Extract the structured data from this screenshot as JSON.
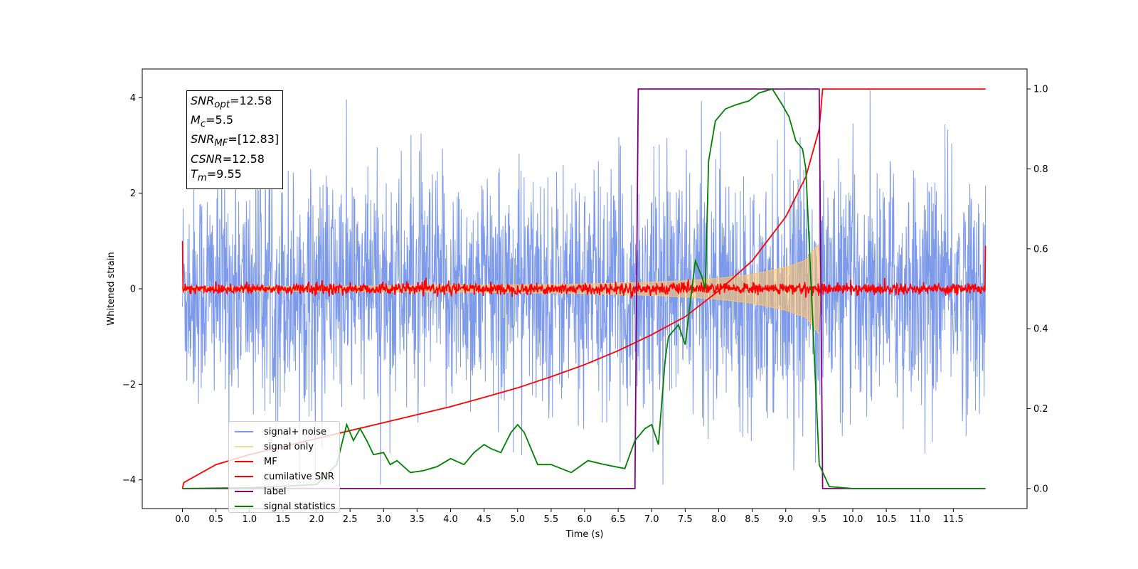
{
  "chart_data": {
    "type": "line",
    "title": "",
    "xlabel": "Time (s)",
    "ylabel": "Whitened strain",
    "ylabel_right": "",
    "xlim": [
      -0.6,
      12.6
    ],
    "ylim_left": [
      -4.6,
      4.6
    ],
    "ylim_right": [
      -0.05,
      1.05
    ],
    "x_ticks": [
      "0.0",
      "0.5",
      "1.0",
      "1.5",
      "2.0",
      "2.5",
      "3.0",
      "3.5",
      "4.0",
      "4.5",
      "5.0",
      "5.5",
      "6.0",
      "6.5",
      "7.0",
      "7.5",
      "8.0",
      "8.5",
      "9.0",
      "9.5",
      "10.0",
      "10.5",
      "11.0",
      "11.5"
    ],
    "y_ticks_left": [
      "4",
      "2",
      "0",
      "−2",
      "−4"
    ],
    "y_ticks_right": [
      "1.0",
      "0.8",
      "0.6",
      "0.4",
      "0.2",
      "0.0"
    ],
    "grid": false,
    "legend_position": "lower-left",
    "colors": {
      "signal_noise": "#6f8ee8",
      "signal_only": "#ffc46b",
      "mf": "#ff0000",
      "cumulative_snr": "#ff0000",
      "label": "#800080",
      "signal_statistics": "#008000"
    },
    "series": [
      {
        "name": "signal+ noise",
        "axis": "left",
        "style": "dense noise band",
        "description_values": {
          "x_start": 0.0,
          "x_end": 11.98,
          "typical_amplitude": 2.2,
          "max_excursion": 4.15,
          "min_excursion": -4.1
        }
      },
      {
        "name": "signal only",
        "axis": "left",
        "style": "chirp envelope",
        "envelope": {
          "x": [
            0.0,
            3.0,
            5.0,
            6.0,
            7.0,
            7.5,
            8.0,
            8.5,
            9.0,
            9.3,
            9.5,
            9.52
          ],
          "amp": [
            0.04,
            0.06,
            0.08,
            0.1,
            0.14,
            0.17,
            0.22,
            0.3,
            0.45,
            0.6,
            0.95,
            0.0
          ]
        }
      },
      {
        "name": "MF",
        "axis": "left",
        "style": "narrow noise band",
        "description_values": {
          "x_start": 0.0,
          "x_end": 11.98,
          "band": 0.12,
          "edge_start": 1.0,
          "edge_end": 0.9
        }
      },
      {
        "name": "cumilative SNR",
        "axis": "right",
        "x": [
          0.0,
          0.02,
          0.5,
          1.0,
          1.5,
          2.0,
          2.5,
          3.0,
          3.5,
          4.0,
          4.5,
          5.0,
          5.5,
          6.0,
          6.5,
          7.0,
          7.5,
          8.0,
          8.5,
          9.0,
          9.3,
          9.5,
          9.55,
          11.98
        ],
        "values": [
          0.0,
          0.015,
          0.06,
          0.085,
          0.105,
          0.125,
          0.145,
          0.165,
          0.185,
          0.205,
          0.228,
          0.252,
          0.28,
          0.31,
          0.345,
          0.385,
          0.43,
          0.495,
          0.57,
          0.68,
          0.78,
          0.9,
          1.0,
          1.0
        ]
      },
      {
        "name": "label",
        "axis": "right",
        "x": [
          0.0,
          6.75,
          6.8,
          9.5,
          9.55,
          11.98
        ],
        "values": [
          0.0,
          0.0,
          1.0,
          1.0,
          0.0,
          0.0
        ]
      },
      {
        "name": "signal statistics",
        "axis": "right",
        "x": [
          0.0,
          1.0,
          2.0,
          2.3,
          2.45,
          2.55,
          2.65,
          2.75,
          2.85,
          3.0,
          3.1,
          3.2,
          3.4,
          3.6,
          3.8,
          4.0,
          4.2,
          4.35,
          4.5,
          4.6,
          4.75,
          4.9,
          5.0,
          5.1,
          5.3,
          5.5,
          5.8,
          6.05,
          6.3,
          6.6,
          6.75,
          6.9,
          7.0,
          7.1,
          7.2,
          7.25,
          7.4,
          7.5,
          7.55,
          7.65,
          7.75,
          7.8,
          7.85,
          7.95,
          8.1,
          8.25,
          8.45,
          8.6,
          8.8,
          8.95,
          9.05,
          9.15,
          9.25,
          9.3,
          9.5,
          9.65,
          10.0,
          11.0,
          11.98
        ],
        "values": [
          0.0,
          0.002,
          0.01,
          0.06,
          0.16,
          0.12,
          0.15,
          0.12,
          0.085,
          0.09,
          0.06,
          0.07,
          0.04,
          0.045,
          0.055,
          0.075,
          0.06,
          0.09,
          0.11,
          0.1,
          0.09,
          0.14,
          0.16,
          0.14,
          0.06,
          0.06,
          0.04,
          0.07,
          0.06,
          0.05,
          0.12,
          0.15,
          0.16,
          0.11,
          0.32,
          0.38,
          0.41,
          0.36,
          0.43,
          0.57,
          0.53,
          0.5,
          0.82,
          0.92,
          0.95,
          0.96,
          0.97,
          0.99,
          1.0,
          0.96,
          0.93,
          0.87,
          0.85,
          0.8,
          0.06,
          0.005,
          0.0,
          0.0,
          0.0
        ]
      }
    ],
    "info_box": [
      "SNR_opt=12.58",
      "M_c=5.5",
      "SNR_MF=[12.83]",
      "CSNR=12.58",
      "T_m=9.55"
    ]
  },
  "info": {
    "snr_opt_base": "SNR",
    "snr_opt_sub": "opt",
    "snr_opt_val": "=12.58",
    "mc_base": "M",
    "mc_sub": "c",
    "mc_val": "=5.5",
    "snr_mf_base": "SNR",
    "snr_mf_sub": "MF",
    "snr_mf_val": "=[12.83]",
    "csnr_base": "CSNR",
    "csnr_val": "=12.58",
    "tm_base": "T",
    "tm_sub": "m",
    "tm_val": "=9.55"
  },
  "legend": {
    "items": [
      {
        "label": "signal+ noise",
        "color": "#6f8ee8"
      },
      {
        "label": "signal only",
        "color": "#ffc46b"
      },
      {
        "label": "MF",
        "color": "#ff0000"
      },
      {
        "label": "cumilative SNR",
        "color": "#ff0000"
      },
      {
        "label": "label",
        "color": "#800080"
      },
      {
        "label": "signal statistics",
        "color": "#008000"
      }
    ]
  }
}
